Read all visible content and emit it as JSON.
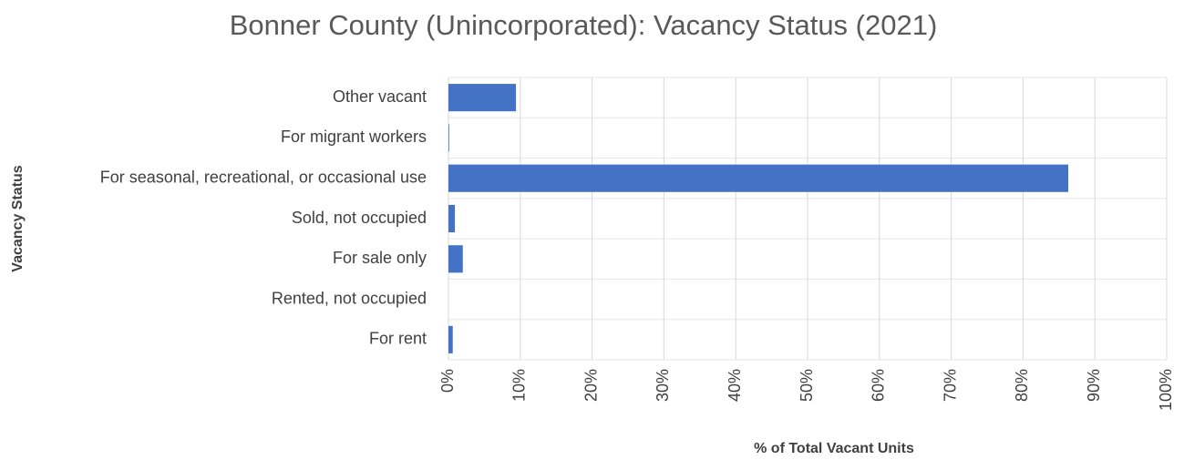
{
  "chart_data": {
    "type": "barh",
    "title": "Bonner County (Unincorporated): Vacancy Status (2021)",
    "y_label": "Vacancy Status",
    "x_label": "% of Total Vacant Units",
    "categories": [
      "Other vacant",
      "For migrant workers",
      "For seasonal, recreational, or occasional use",
      "Sold, not occupied",
      "For sale only",
      "Rented, not occupied",
      "For rent"
    ],
    "values": [
      9.4,
      0.1,
      86.3,
      0.9,
      2.0,
      0,
      0.6
    ],
    "color": "#4472c4",
    "xlim": [
      0,
      100
    ],
    "xticks": [
      {
        "value": 0,
        "label": "0%"
      },
      {
        "value": 10,
        "label": "10%"
      },
      {
        "value": 20,
        "label": "20%"
      },
      {
        "value": 30,
        "label": "30%"
      },
      {
        "value": 40,
        "label": "40%"
      },
      {
        "value": 50,
        "label": "50%"
      },
      {
        "value": 60,
        "label": "60%"
      },
      {
        "value": 70,
        "label": "70%"
      },
      {
        "value": 80,
        "label": "80%"
      },
      {
        "value": 90,
        "label": "90%"
      },
      {
        "value": 100,
        "label": "100%"
      }
    ],
    "grid": true
  }
}
